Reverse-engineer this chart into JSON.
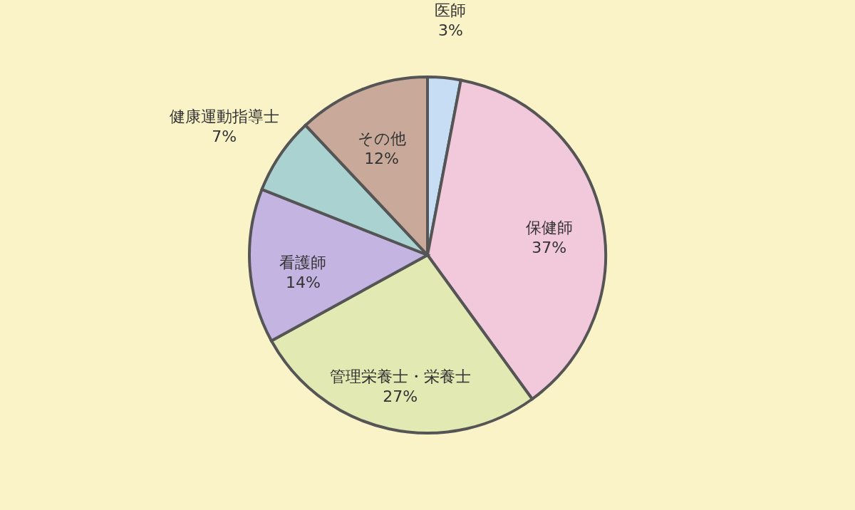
{
  "chart_data": {
    "type": "pie",
    "categories": [
      "医師",
      "保健師",
      "管理栄養士・栄養士",
      "看護師",
      "健康運動指導士",
      "その他"
    ],
    "values": [
      3,
      37,
      27,
      14,
      7,
      12
    ],
    "value_labels": [
      "3%",
      "37%",
      "27%",
      "14%",
      "7%",
      "12%"
    ],
    "colors": [
      "#c6ddf3",
      "#f1c9da",
      "#e2e9b3",
      "#c4b4e2",
      "#a9d2d0",
      "#c9aa9a"
    ],
    "legend": false
  }
}
